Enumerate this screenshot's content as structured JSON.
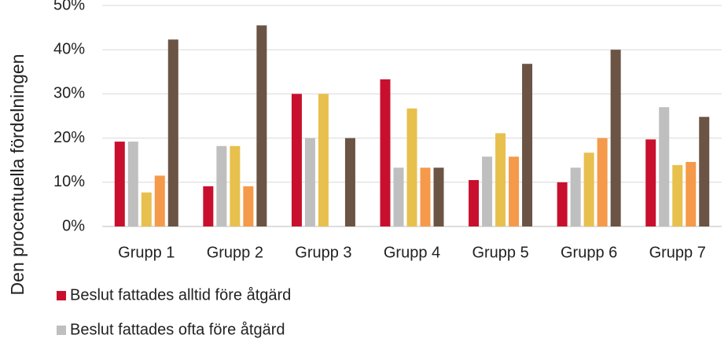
{
  "chart_data": {
    "type": "bar",
    "y_label": "Den procentuella fördelningen",
    "categories": [
      "Grupp 1",
      "Grupp 2",
      "Grupp 3",
      "Grupp 4",
      "Grupp 5",
      "Grupp 6",
      "Grupp 7"
    ],
    "series": [
      {
        "name": "Beslut fattades alltid före åtgärd",
        "color": "#c8102e",
        "values": [
          19.2,
          9.1,
          30,
          33.3,
          10.5,
          10,
          19.7
        ]
      },
      {
        "name": "Beslut fattades ofta före åtgärd",
        "color": "#bfbfbf",
        "values": [
          19.2,
          18.2,
          20,
          13.3,
          15.8,
          13.3,
          27
        ]
      },
      {
        "color": "#e8c04e",
        "values": [
          7.7,
          18.2,
          30,
          26.7,
          21.1,
          16.7,
          13.9
        ]
      },
      {
        "color": "#f59a4a",
        "values": [
          11.5,
          9.1,
          0,
          13.3,
          15.8,
          20,
          14.6
        ]
      },
      {
        "color": "#6b5444",
        "values": [
          42.3,
          45.5,
          20,
          13.3,
          36.8,
          40,
          24.8
        ]
      }
    ],
    "ylim": [
      0,
      50
    ],
    "yticks": [
      {
        "value": 0,
        "label": "0%"
      },
      {
        "value": 10,
        "label": "10%"
      },
      {
        "value": 20,
        "label": "20%"
      },
      {
        "value": 30,
        "label": "30%"
      },
      {
        "value": 40,
        "label": "40%"
      },
      {
        "value": 50,
        "label": "50%"
      }
    ],
    "grid": true
  }
}
